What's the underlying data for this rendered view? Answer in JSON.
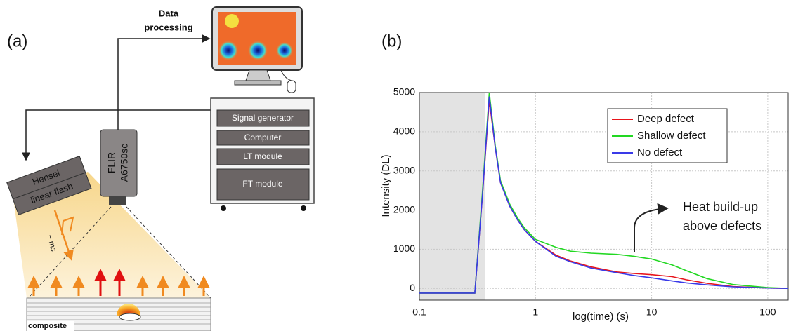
{
  "panel_a": {
    "label": "(a)",
    "data_processing": [
      "Data",
      "processing"
    ],
    "camera": [
      "FLIR",
      "A6750sc"
    ],
    "flash": [
      "Hensel",
      "linear flash"
    ],
    "pulse": "~ ms",
    "modules": [
      "Signal generator",
      "Computer",
      "LT module",
      "FT module"
    ],
    "sample": "composite"
  },
  "chart_data": {
    "type": "line",
    "label": "(b)",
    "x_label": "log(time) (s)",
    "y_label": "Intensity (DL)",
    "x_log": true,
    "grid": true,
    "xlim": [
      0.1,
      150
    ],
    "ylim": [
      -300,
      5000
    ],
    "xticks": [
      0.1,
      1,
      10,
      100
    ],
    "yticks": [
      0,
      1000,
      2000,
      3000,
      4000,
      5000
    ],
    "shaded_region": [
      0.1,
      0.37
    ],
    "x": [
      0.1,
      0.3,
      0.35,
      0.4,
      0.45,
      0.5,
      0.6,
      0.7,
      0.8,
      1,
      1.5,
      2,
      3,
      5,
      7,
      10,
      15,
      20,
      30,
      50,
      100,
      150
    ],
    "series": [
      {
        "name": "Deep defect",
        "color": "#e8141b",
        "values": [
          -120,
          -120,
          2400,
          4800,
          3600,
          2700,
          2100,
          1750,
          1500,
          1200,
          850,
          700,
          550,
          420,
          380,
          350,
          300,
          220,
          130,
          50,
          10,
          0
        ]
      },
      {
        "name": "Shallow defect",
        "color": "#22d822",
        "values": [
          -120,
          -120,
          2500,
          5000,
          3650,
          2750,
          2150,
          1800,
          1550,
          1250,
          1050,
          950,
          900,
          870,
          820,
          750,
          600,
          450,
          250,
          100,
          20,
          0
        ]
      },
      {
        "name": "No defect",
        "color": "#3a3ae8",
        "values": [
          -120,
          -120,
          2400,
          4900,
          3600,
          2700,
          2100,
          1750,
          1500,
          1200,
          820,
          680,
          520,
          400,
          330,
          270,
          190,
          140,
          90,
          40,
          10,
          0
        ]
      }
    ],
    "legend": "upper right",
    "annotation": [
      "Heat build-up",
      "above defects"
    ]
  }
}
